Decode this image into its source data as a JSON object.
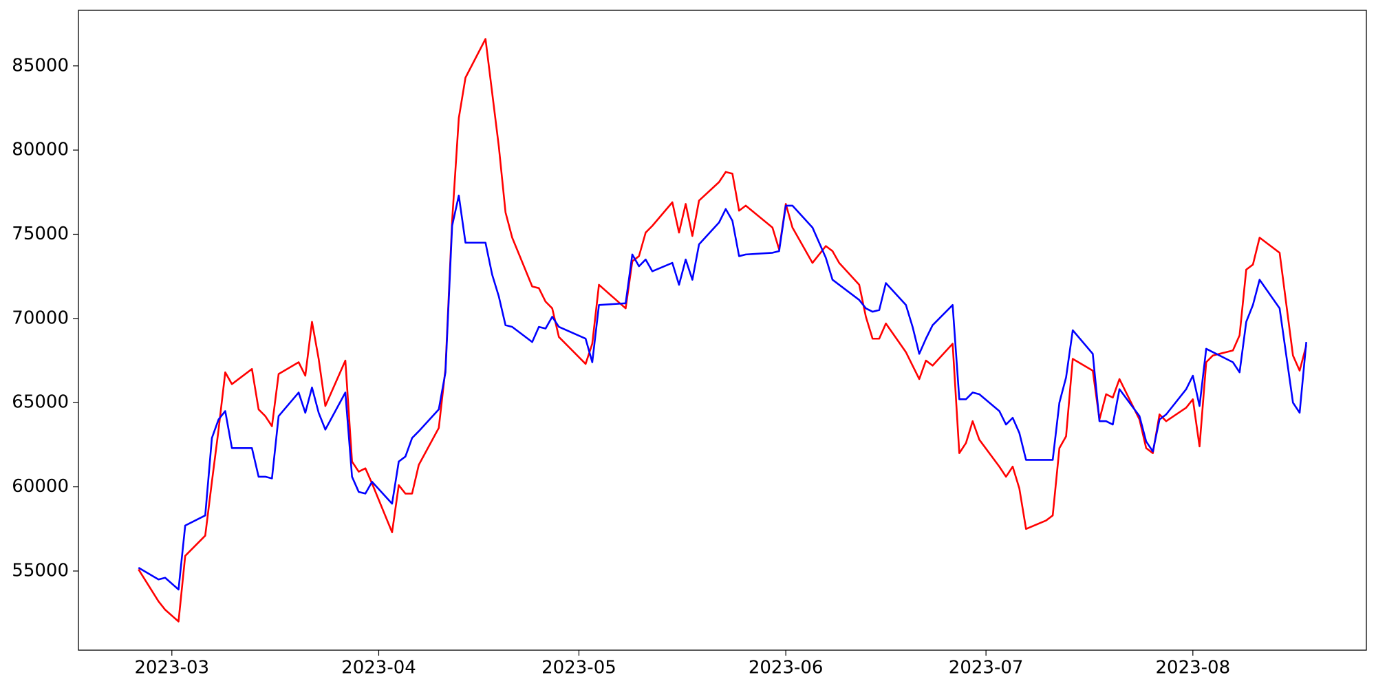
{
  "chart_data": {
    "type": "line",
    "x": [
      "2023-02-24",
      "2023-02-27",
      "2023-02-28",
      "2023-03-02",
      "2023-03-03",
      "2023-03-06",
      "2023-03-07",
      "2023-03-08",
      "2023-03-09",
      "2023-03-10",
      "2023-03-13",
      "2023-03-14",
      "2023-03-15",
      "2023-03-16",
      "2023-03-17",
      "2023-03-20",
      "2023-03-21",
      "2023-03-22",
      "2023-03-23",
      "2023-03-24",
      "2023-03-27",
      "2023-03-28",
      "2023-03-29",
      "2023-03-30",
      "2023-03-31",
      "2023-04-03",
      "2023-04-04",
      "2023-04-05",
      "2023-04-06",
      "2023-04-07",
      "2023-04-10",
      "2023-04-11",
      "2023-04-12",
      "2023-04-13",
      "2023-04-14",
      "2023-04-17",
      "2023-04-18",
      "2023-04-19",
      "2023-04-20",
      "2023-04-21",
      "2023-04-24",
      "2023-04-25",
      "2023-04-26",
      "2023-04-27",
      "2023-04-28",
      "2023-05-02",
      "2023-05-03",
      "2023-05-04",
      "2023-05-08",
      "2023-05-09",
      "2023-05-10",
      "2023-05-11",
      "2023-05-12",
      "2023-05-15",
      "2023-05-16",
      "2023-05-17",
      "2023-05-18",
      "2023-05-19",
      "2023-05-22",
      "2023-05-23",
      "2023-05-24",
      "2023-05-25",
      "2023-05-26",
      "2023-05-30",
      "2023-05-31",
      "2023-06-01",
      "2023-06-02",
      "2023-06-05",
      "2023-06-07",
      "2023-06-08",
      "2023-06-09",
      "2023-06-12",
      "2023-06-13",
      "2023-06-14",
      "2023-06-15",
      "2023-06-16",
      "2023-06-19",
      "2023-06-20",
      "2023-06-21",
      "2023-06-22",
      "2023-06-23",
      "2023-06-26",
      "2023-06-27",
      "2023-06-28",
      "2023-06-29",
      "2023-06-30",
      "2023-07-03",
      "2023-07-04",
      "2023-07-05",
      "2023-07-06",
      "2023-07-07",
      "2023-07-10",
      "2023-07-11",
      "2023-07-12",
      "2023-07-13",
      "2023-07-14",
      "2023-07-17",
      "2023-07-18",
      "2023-07-19",
      "2023-07-20",
      "2023-07-21",
      "2023-07-24",
      "2023-07-25",
      "2023-07-26",
      "2023-07-27",
      "2023-07-28",
      "2023-07-31",
      "2023-08-01",
      "2023-08-02",
      "2023-08-03",
      "2023-08-04",
      "2023-08-07",
      "2023-08-08",
      "2023-08-09",
      "2023-08-10",
      "2023-08-11",
      "2023-08-14",
      "2023-08-16",
      "2023-08-17",
      "2023-08-18"
    ],
    "series": [
      {
        "color": "#ff0000",
        "values": [
          55100,
          53200,
          52700,
          52000,
          55900,
          57100,
          60300,
          63400,
          66800,
          66100,
          67000,
          64600,
          64200,
          63600,
          66700,
          67400,
          66600,
          69800,
          67600,
          64800,
          67500,
          61500,
          60900,
          61100,
          60200,
          57300,
          60100,
          59600,
          59600,
          61300,
          63500,
          67000,
          75800,
          81900,
          84300,
          86600,
          83400,
          80200,
          76300,
          74800,
          71900,
          71800,
          71000,
          70600,
          68900,
          67300,
          68500,
          72000,
          70600,
          73400,
          73700,
          75100,
          75500,
          76900,
          75100,
          76800,
          74900,
          77000,
          78100,
          78700,
          78600,
          76400,
          76700,
          75400,
          74100,
          76800,
          75400,
          73300,
          74300,
          74000,
          73300,
          72000,
          70100,
          68800,
          68800,
          69700,
          68000,
          67200,
          66400,
          67500,
          67200,
          68500,
          62000,
          62600,
          63900,
          62800,
          61200,
          60600,
          61200,
          59900,
          57500,
          58000,
          58300,
          62300,
          63000,
          67600,
          66900,
          64000,
          65500,
          65300,
          66400,
          64000,
          62300,
          62000,
          64300,
          63900,
          64700,
          65200,
          62400,
          67400,
          67800,
          68100,
          69000,
          72900,
          73200,
          74800,
          73900,
          67800,
          66900,
          68400
        ]
      },
      {
        "color": "#0000ff",
        "values": [
          55200,
          54500,
          54600,
          53900,
          57700,
          58300,
          62900,
          64000,
          64500,
          62300,
          62300,
          60600,
          60600,
          60500,
          64200,
          65600,
          64400,
          65900,
          64400,
          63400,
          65600,
          60600,
          59700,
          59600,
          60300,
          59000,
          61500,
          61800,
          62900,
          63300,
          64600,
          66800,
          75500,
          77300,
          74500,
          74500,
          72600,
          71300,
          69600,
          69500,
          68600,
          69500,
          69400,
          70100,
          69500,
          68800,
          67400,
          70800,
          70900,
          73800,
          73100,
          73500,
          72800,
          73300,
          72000,
          73500,
          72300,
          74400,
          75700,
          76500,
          75800,
          73700,
          73800,
          73900,
          74000,
          76700,
          76700,
          75400,
          73600,
          72300,
          72000,
          71100,
          70600,
          70400,
          70500,
          72100,
          70800,
          69500,
          67900,
          68800,
          69600,
          70800,
          65200,
          65200,
          65600,
          65500,
          64500,
          63700,
          64100,
          63200,
          61600,
          61600,
          61600,
          65000,
          66500,
          69300,
          67900,
          63900,
          63900,
          63700,
          65800,
          64200,
          62700,
          62100,
          64000,
          64300,
          65800,
          66600,
          64800,
          68200,
          68000,
          67400,
          66800,
          69800,
          70800,
          72300,
          70600,
          65000,
          64400,
          68600
        ]
      }
    ],
    "xlim": [
      "2023-02-15",
      "2023-08-27"
    ],
    "xticks": [
      {
        "value": "2023-03-01",
        "label": "2023-03"
      },
      {
        "value": "2023-04-01",
        "label": "2023-04"
      },
      {
        "value": "2023-05-01",
        "label": "2023-05"
      },
      {
        "value": "2023-06-01",
        "label": "2023-06"
      },
      {
        "value": "2023-07-01",
        "label": "2023-07"
      },
      {
        "value": "2023-08-01",
        "label": "2023-08"
      }
    ],
    "ylim": [
      50300,
      88300
    ],
    "yticks": [
      55000,
      60000,
      65000,
      70000,
      75000,
      80000,
      85000
    ],
    "grid": false
  }
}
